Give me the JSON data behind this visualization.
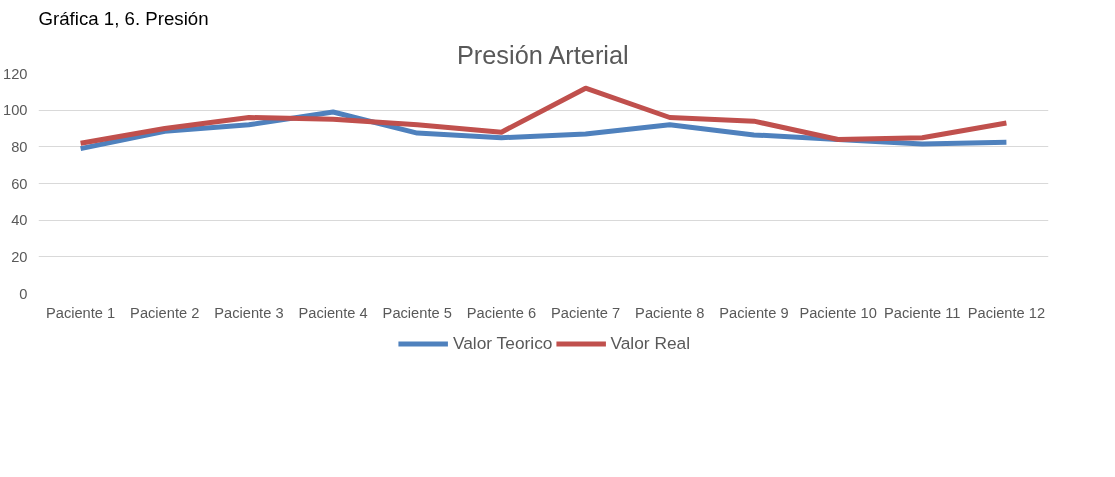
{
  "chart_data": {
    "type": "line",
    "title": "Presión Arterial",
    "annotations": [
      "Gráfica 1, 6. Presión"
    ],
    "categories": [
      "Paciente 1",
      "Paciente 2",
      "Paciente 3",
      "Paciente 4",
      "Paciente 5",
      "Paciente 6",
      "Paciente 7",
      "Paciente 8",
      "Paciente 9",
      "Paciente 10",
      "Paciente 11",
      "Paciente 12"
    ],
    "series": [
      {
        "name": "Valor Teorico",
        "color": "#4f81bd",
        "values": [
          79,
          88.5,
          92,
          99,
          87.5,
          85,
          87,
          92,
          86.5,
          84,
          81.5,
          82.5
        ]
      },
      {
        "name": "Valor Real",
        "color": "#c0504d",
        "values": [
          82,
          90,
          96,
          95,
          92,
          88,
          112,
          96,
          94,
          84,
          85,
          93
        ]
      }
    ],
    "ylim": [
      0,
      120
    ],
    "yticks": [
      0,
      20,
      40,
      60,
      80,
      100,
      120
    ],
    "grid": "y",
    "legend": "bottom",
    "marker": "none",
    "line_style": "solid"
  }
}
